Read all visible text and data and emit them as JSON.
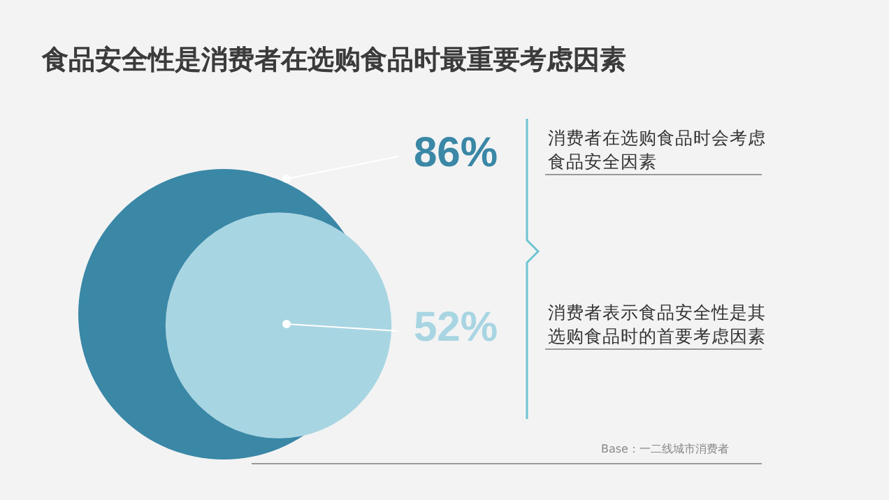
{
  "chart_data": {
    "type": "other",
    "title": "食品安全性是消费者在选购食品时最重要考虑因素",
    "categories": [
      "消费者在选购食品时会考虑食品安全因素",
      "消费者表示食品安全性是其选购食品时的首要考虑因素"
    ],
    "values": [
      86,
      52
    ],
    "value_labels": [
      "86%",
      "52%"
    ],
    "colors": [
      "#3a87a6",
      "#a8d5e2"
    ],
    "annotations": [
      "Base：一二线城市消费者"
    ]
  }
}
